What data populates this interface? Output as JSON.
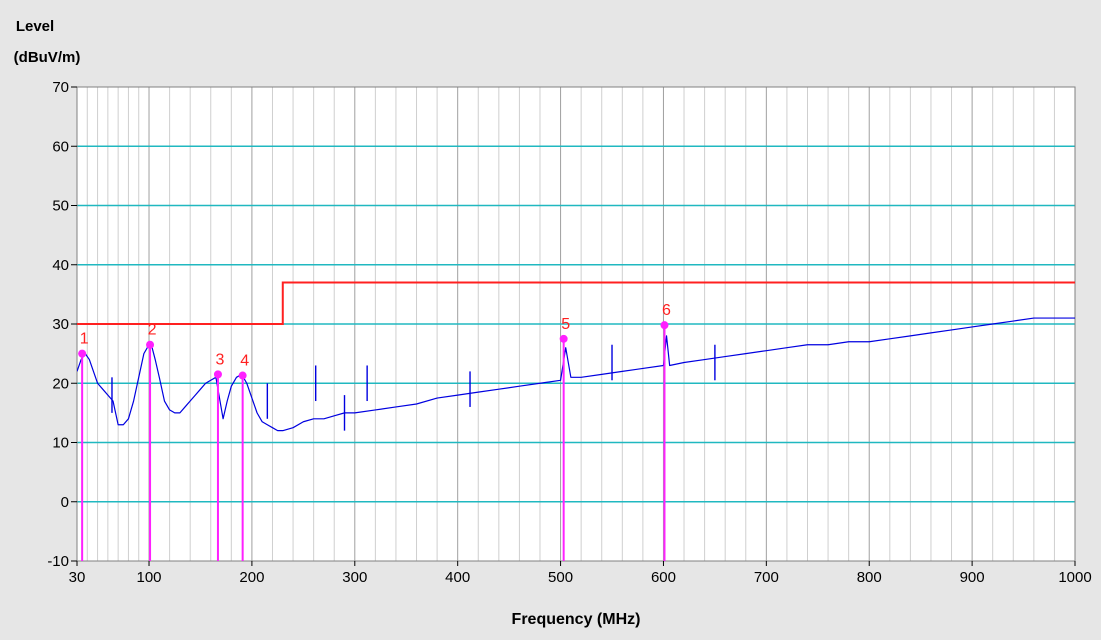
{
  "chart_data": {
    "type": "line",
    "title": "",
    "ylabel_lines": [
      "Level",
      "(dBuV/m)"
    ],
    "xlabel": "Frequency (MHz)",
    "xlim": [
      30,
      1000
    ],
    "ylim": [
      -10,
      70
    ],
    "x_ticks": [
      30,
      100,
      200,
      300,
      400,
      500,
      600,
      700,
      800,
      900,
      1000
    ],
    "y_ticks": [
      -10,
      0,
      10,
      20,
      30,
      40,
      50,
      60,
      70
    ],
    "grid": true,
    "colors": {
      "background": "#e6e6e6",
      "plot_background": "#ffffff",
      "major_grid_x": "#a0a0a0",
      "minor_grid_x": "#cfcfcf",
      "grid_y": "#20b8c0",
      "trace": "#0000e0",
      "limit": "#ff2020",
      "marker": "#ff20ff",
      "marker_label": "#ff2020"
    },
    "series": [
      {
        "kind": "limit",
        "x": [
          30,
          230,
          230,
          1000
        ],
        "y": [
          30,
          30,
          37,
          37
        ]
      },
      {
        "kind": "trace",
        "x": [
          30,
          34,
          38,
          42,
          46,
          50,
          55,
          60,
          65,
          70,
          75,
          80,
          85,
          90,
          95,
          100,
          103,
          106,
          110,
          115,
          120,
          125,
          130,
          135,
          140,
          145,
          150,
          155,
          160,
          165,
          168,
          172,
          176,
          180,
          185,
          190,
          195,
          200,
          205,
          210,
          215,
          220,
          225,
          230,
          240,
          250,
          260,
          270,
          280,
          290,
          300,
          320,
          340,
          360,
          380,
          400,
          420,
          440,
          460,
          480,
          500,
          505,
          510,
          520,
          540,
          560,
          580,
          600,
          603,
          606,
          620,
          640,
          660,
          680,
          700,
          720,
          740,
          760,
          780,
          800,
          820,
          840,
          860,
          880,
          900,
          920,
          940,
          960,
          980,
          1000
        ],
        "y": [
          22,
          24,
          25,
          24,
          22,
          20,
          19,
          18,
          17,
          13,
          13,
          14,
          17,
          21,
          25,
          26.5,
          26,
          24,
          21,
          17,
          15.5,
          15,
          15,
          16,
          17,
          18,
          19,
          20,
          20.5,
          21,
          18,
          14,
          17,
          19.5,
          21,
          21.5,
          20,
          17.5,
          15,
          13.5,
          13,
          12.5,
          12,
          12,
          12.5,
          13.5,
          14,
          14,
          14.5,
          15,
          15,
          15.5,
          16,
          16.5,
          17.5,
          18,
          18.5,
          19,
          19.5,
          20,
          20.5,
          26,
          21,
          21,
          21.5,
          22,
          22.5,
          23,
          28,
          23,
          23.5,
          24,
          24.5,
          25,
          25.5,
          26,
          26.5,
          26.5,
          27,
          27,
          27.5,
          28,
          28.5,
          29,
          29.5,
          30,
          30.5,
          31,
          31,
          31
        ]
      },
      {
        "kind": "spikes",
        "x": [
          64,
          215,
          262,
          290,
          312,
          412,
          550,
          650
        ],
        "y": [
          21,
          20,
          23,
          18,
          23,
          22,
          26.5,
          26.5
        ]
      }
    ],
    "markers": [
      {
        "label": "1",
        "x": 35,
        "y": 25
      },
      {
        "label": "2",
        "x": 101,
        "y": 26.5
      },
      {
        "label": "3",
        "x": 167,
        "y": 21.5
      },
      {
        "label": "4",
        "x": 191,
        "y": 21.3
      },
      {
        "label": "5",
        "x": 503,
        "y": 27.5
      },
      {
        "label": "6",
        "x": 601,
        "y": 29.8
      }
    ]
  }
}
